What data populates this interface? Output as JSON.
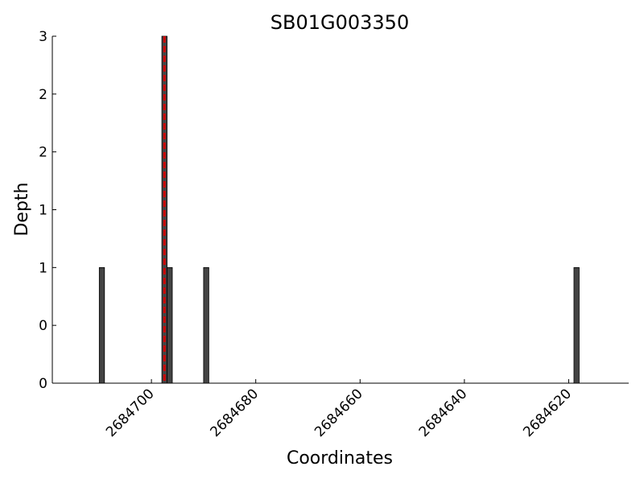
{
  "chart_data": {
    "type": "bar",
    "title": "SB01G003350",
    "x_label": "Coordinates",
    "y_label": "Depth",
    "x": [
      2684709.5,
      2684697.5,
      2684696.5,
      2684689.5,
      2684618.5
    ],
    "bar_width": 1,
    "values": [
      1,
      3,
      1,
      1,
      1
    ],
    "color": "#444444",
    "xlim": [
      2684719,
      2684608.5
    ],
    "xticks": [
      2684700,
      2684680,
      2684660,
      2684640,
      2684620
    ],
    "ylim": [
      0,
      3
    ],
    "yticks": [
      0,
      {
        "value": 0.5,
        "label": "0"
      },
      1,
      {
        "value": 1.5,
        "label": "1"
      },
      2,
      {
        "value": 2.5,
        "label": "2"
      },
      3
    ],
    "vline": {
      "x": 2684697.5,
      "color": "#cc0000"
    },
    "grid": false
  }
}
